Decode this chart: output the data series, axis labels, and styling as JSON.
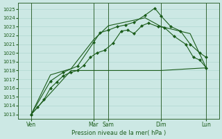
{
  "bg_color": "#cce8e4",
  "grid_color": "#b0d8d0",
  "line_color": "#1a5c1a",
  "title": "Pression niveau de la mer( hPa )",
  "ylim": [
    1012.5,
    1025.7
  ],
  "yticks": [
    1013,
    1014,
    1015,
    1016,
    1017,
    1018,
    1019,
    1020,
    1021,
    1022,
    1023,
    1024,
    1025
  ],
  "xlim": [
    -2,
    310
  ],
  "xtick_positions": [
    18,
    115,
    138,
    220,
    290
  ],
  "xtick_labels": [
    "Ven",
    "Mar",
    "Sam",
    "Dim",
    "Lun"
  ],
  "vline_positions": [
    18,
    115,
    138,
    220,
    290
  ],
  "line1_x": [
    18,
    28,
    38,
    48,
    58,
    68,
    80,
    90,
    100,
    110,
    120,
    132,
    145,
    158,
    168,
    178,
    190,
    200,
    215,
    225,
    240,
    258,
    270,
    280,
    290
  ],
  "line1_y": [
    1013.0,
    1013.8,
    1014.7,
    1016.0,
    1016.7,
    1017.4,
    1017.8,
    1018.0,
    1018.6,
    1019.5,
    1020.0,
    1020.3,
    1021.1,
    1022.5,
    1022.6,
    1022.2,
    1023.1,
    1023.4,
    1023.0,
    1022.9,
    1021.9,
    1021.0,
    1019.5,
    1019.2,
    1018.3
  ],
  "line2_x": [
    18,
    48,
    68,
    90,
    115,
    125,
    138,
    152,
    165,
    178,
    195,
    210,
    220,
    235,
    250,
    265,
    280,
    290
  ],
  "line2_y": [
    1013.0,
    1016.8,
    1017.8,
    1018.5,
    1021.2,
    1022.3,
    1022.6,
    1023.0,
    1023.2,
    1023.5,
    1024.3,
    1025.1,
    1024.2,
    1023.0,
    1022.5,
    1021.0,
    1020.0,
    1019.5
  ],
  "line3_x": [
    18,
    48,
    80,
    115,
    138,
    195,
    220,
    265,
    290
  ],
  "line3_y": [
    1013.0,
    1017.5,
    1018.2,
    1021.5,
    1023.1,
    1024.0,
    1023.0,
    1022.2,
    1018.3
  ],
  "line4_x": [
    18,
    80,
    115,
    138,
    195,
    220,
    265,
    290
  ],
  "line4_y": [
    1013.0,
    1018.0,
    1018.0,
    1018.0,
    1018.0,
    1018.0,
    1018.2,
    1018.3
  ]
}
